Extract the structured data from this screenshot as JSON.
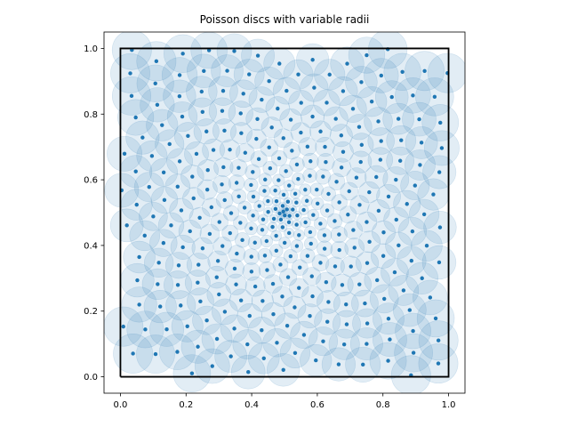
{
  "chart_data": {
    "type": "scatter",
    "title": "Poisson discs with variable radii",
    "xlabel": "",
    "ylabel": "",
    "xlim": [
      -0.05,
      1.05
    ],
    "ylim": [
      -0.05,
      1.05
    ],
    "xticks": [
      "0.0",
      "0.2",
      "0.4",
      "0.6",
      "0.8",
      "1.0"
    ],
    "yticks": [
      "0.0",
      "0.2",
      "0.4",
      "0.6",
      "0.8",
      "1.0"
    ],
    "grid": false,
    "legend": "none",
    "colors": {
      "points": "#1f77b4",
      "discs": "#1f77b4",
      "square": "#000000"
    },
    "unit_square": {
      "x": [
        0,
        1,
        1,
        0,
        0
      ],
      "y": [
        0,
        0,
        1,
        1,
        0
      ]
    },
    "disc_radius_rule": {
      "center": [
        0.5,
        0.5
      ],
      "min_radius": 0.01,
      "max_radius": 0.06
    },
    "sample_points": {
      "generator": "sunflower-spiral",
      "count": 620,
      "center": [
        0.5,
        0.5
      ],
      "note_values": "Points are densest near (0.5, 0.5) and sparser toward the edges; all points lie within [0,1]x[0,1]."
    }
  }
}
